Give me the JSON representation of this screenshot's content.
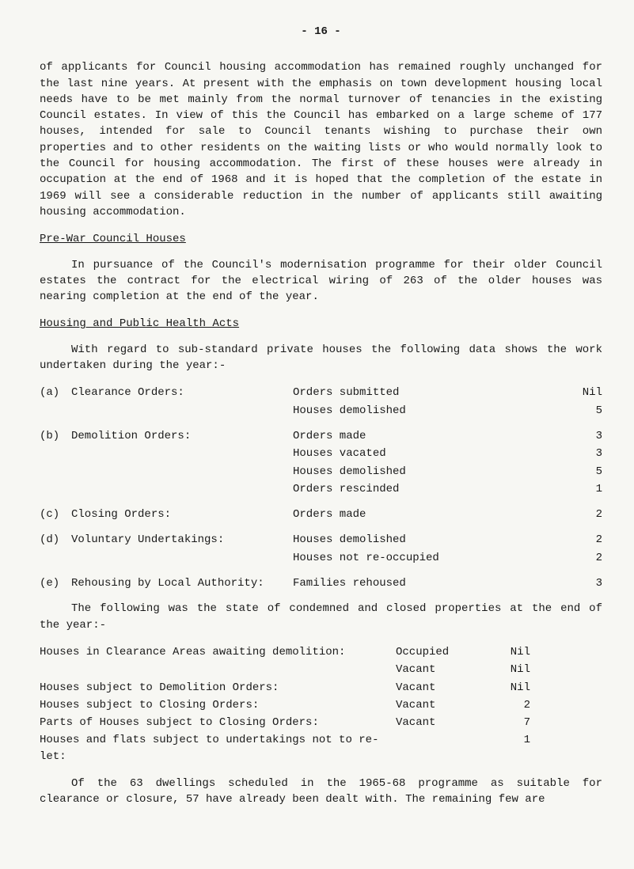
{
  "page_number": "- 16 -",
  "para1": "of applicants for Council housing accommodation has remained roughly unchanged for the last nine years. At present with the emphasis on town development housing local needs have to be met mainly from the normal turnover of tenancies in the existing Council estates. In view of this the Council has embarked on a large scheme of 177 houses, intended for sale to Council tenants wishing to purchase their own properties and to other residents on the waiting lists or who would normally look to the Council for housing accommodation. The first of these houses were already in occupation at the end of 1968 and it is hoped that the completion of the estate in 1969 will see a considerable reduction in the number of applicants still awaiting housing accommodation.",
  "heading1": "Pre-War Council Houses",
  "para2": "In pursuance of the Council's modernisation programme for their older Council estates the contract for the electrical wiring of 263 of the older houses was nearing completion at the end of the year.",
  "heading2": "Housing and Public Health Acts",
  "para3": "With regard to sub-standard private houses the following data shows the work undertaken during the year:-",
  "list": [
    {
      "label": "(a)",
      "title": "Clearance Orders:",
      "subs": [
        {
          "t": "Orders submitted",
          "v": "Nil"
        },
        {
          "t": "Houses demolished",
          "v": "5"
        }
      ]
    },
    {
      "label": "(b)",
      "title": "Demolition Orders:",
      "subs": [
        {
          "t": "Orders made",
          "v": "3"
        },
        {
          "t": "Houses vacated",
          "v": "3"
        },
        {
          "t": "Houses demolished",
          "v": "5"
        },
        {
          "t": "Orders rescinded",
          "v": "1"
        }
      ]
    },
    {
      "label": "(c)",
      "title": "Closing Orders:",
      "subs": [
        {
          "t": "Orders made",
          "v": "2"
        }
      ]
    },
    {
      "label": "(d)",
      "title": "Voluntary Undertakings:",
      "subs": [
        {
          "t": "Houses demolished",
          "v": "2"
        },
        {
          "t": "Houses not re-occupied",
          "v": "2"
        }
      ]
    },
    {
      "label": "(e)",
      "title": "Rehousing by Local Authority:",
      "subs": [
        {
          "t": "Families rehoused",
          "v": "3"
        }
      ]
    }
  ],
  "para4": "The following was the state of condemned and closed properties at the end of the year:-",
  "table2": [
    {
      "l": "Houses in Clearance Areas awaiting demolition:",
      "m": "Occupied",
      "r": "Nil"
    },
    {
      "l": "",
      "m": "Vacant",
      "r": "Nil"
    },
    {
      "l": "Houses subject to Demolition Orders:",
      "m": "Vacant",
      "r": "Nil"
    },
    {
      "l": "Houses subject to Closing Orders:",
      "m": "Vacant",
      "r": "2"
    },
    {
      "l": "Parts of Houses subject to Closing Orders:",
      "m": "Vacant",
      "r": "7"
    },
    {
      "l": "Houses and flats subject to undertakings not to re-let:",
      "m": "",
      "r": "1"
    }
  ],
  "para5": "Of the 63 dwellings scheduled in the 1965-68 programme as suitable for clearance or closure, 57 have already been dealt with. The remaining few are"
}
